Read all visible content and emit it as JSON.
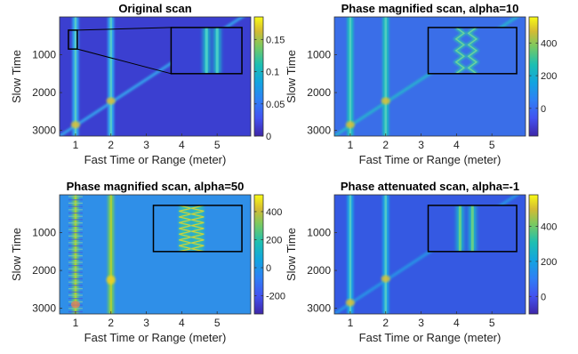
{
  "chart_data": [
    {
      "type": "heatmap",
      "title": "Original scan",
      "xlabel": "Fast Time or Range (meter)",
      "ylabel": "Slow Time",
      "xlim": [
        0.55,
        5.95
      ],
      "ylim": [
        3150,
        0
      ],
      "x_ticks": [
        1,
        2,
        3,
        4,
        5
      ],
      "y_ticks": [
        1000,
        2000,
        3000
      ],
      "colorbar": {
        "min": 0,
        "max": 0.185,
        "ticks": [
          0,
          0.05,
          0.1,
          0.15
        ],
        "tick_labels": [
          "0",
          "0.05",
          "0.1",
          "0.15"
        ]
      },
      "features": {
        "vertical_lines_x": [
          1,
          2
        ],
        "diagonal_line": {
          "x": [
            0.55,
            5.95
          ],
          "y": [
            3150,
            -150
          ]
        },
        "selection_box": {
          "x": [
            0.8,
            1.05
          ],
          "y": [
            350,
            850
          ]
        },
        "inset": {
          "x": [
            3.7,
            5.7
          ],
          "y": [
            280,
            1500
          ],
          "columns": [
            4.7,
            5.0
          ],
          "pattern": "uniform"
        }
      }
    },
    {
      "type": "heatmap",
      "title": "Phase magnified scan, alpha=10",
      "xlabel": "Fast Time or Range (meter)",
      "ylabel": "Slow Time",
      "xlim": [
        0.55,
        5.95
      ],
      "ylim": [
        3150,
        0
      ],
      "x_ticks": [
        1,
        2,
        3,
        4,
        5
      ],
      "y_ticks": [
        1000,
        2000,
        3000
      ],
      "colorbar": {
        "min": -170,
        "max": 560,
        "ticks": [
          0,
          200,
          400
        ],
        "tick_labels": [
          "0",
          "200",
          "400"
        ]
      },
      "features": {
        "vertical_lines_x": [
          1,
          2
        ],
        "diagonal_line": {
          "x": [
            0.55,
            5.95
          ],
          "y": [
            3150,
            -150
          ]
        },
        "inset": {
          "x": [
            3.2,
            5.7
          ],
          "y": [
            280,
            1500
          ],
          "columns": [
            4.1,
            4.45
          ],
          "pattern": "zigzag-weak"
        }
      }
    },
    {
      "type": "heatmap",
      "title": "Phase magnified scan, alpha=50",
      "xlabel": "Fast Time or Range (meter)",
      "ylabel": "Slow Time",
      "xlim": [
        0.55,
        5.95
      ],
      "ylim": [
        3150,
        0
      ],
      "x_ticks": [
        1,
        2,
        3,
        4,
        5
      ],
      "y_ticks": [
        1000,
        2000,
        3000
      ],
      "colorbar": {
        "min": -330,
        "max": 520,
        "ticks": [
          -200,
          0,
          200,
          400
        ],
        "tick_labels": [
          "-200",
          "0",
          "200",
          "400"
        ]
      },
      "features": {
        "vertical_lines_x": [
          1,
          2
        ],
        "diagonal_line": null,
        "inset": {
          "x": [
            3.2,
            5.7
          ],
          "y": [
            280,
            1500
          ],
          "columns": [
            4.1,
            4.45
          ],
          "pattern": "zigzag-strong"
        }
      }
    },
    {
      "type": "heatmap",
      "title": "Phase attenuated scan, alpha=-1",
      "xlabel": "Fast Time or Range (meter)",
      "ylabel": "Slow Time",
      "xlim": [
        0.55,
        5.95
      ],
      "ylim": [
        3150,
        0
      ],
      "x_ticks": [
        1,
        2,
        3,
        4,
        5
      ],
      "y_ticks": [
        1000,
        2000,
        3000
      ],
      "colorbar": {
        "min": -100,
        "max": 580,
        "ticks": [
          0,
          200,
          400
        ],
        "tick_labels": [
          "0",
          "200",
          "400"
        ]
      },
      "features": {
        "vertical_lines_x": [
          1,
          2
        ],
        "diagonal_line": {
          "x": [
            0.55,
            5.95
          ],
          "y": [
            3150,
            -150
          ]
        },
        "inset": {
          "x": [
            3.2,
            5.7
          ],
          "y": [
            280,
            1500
          ],
          "columns": [
            4.1,
            4.45
          ],
          "pattern": "smooth"
        }
      }
    }
  ]
}
